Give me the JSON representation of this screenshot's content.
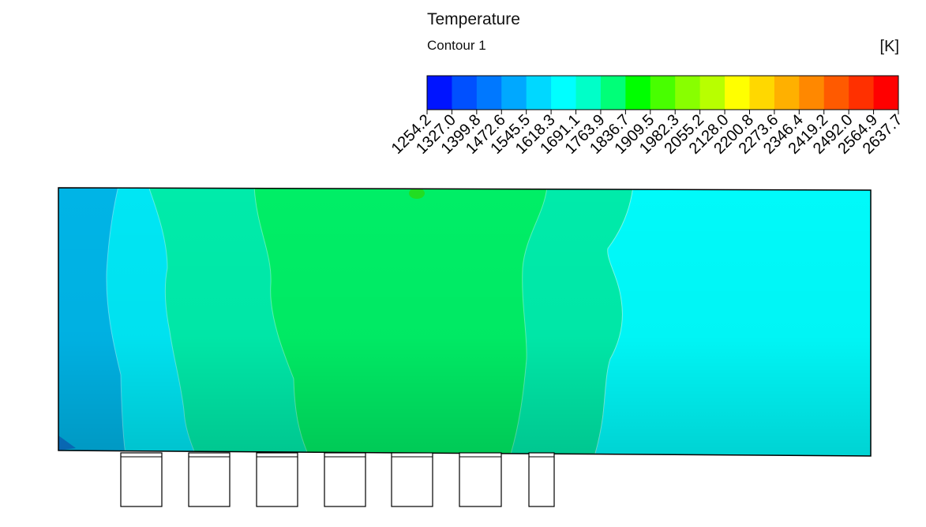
{
  "chart_data": {
    "type": "heatmap",
    "title": "Temperature",
    "subtitle": "Contour 1",
    "unit": "[K]",
    "colorbar": {
      "ticks": [
        "1254.2",
        "1327.0",
        "1399.8",
        "1472.6",
        "1545.5",
        "1618.3",
        "1691.1",
        "1763.9",
        "1836.7",
        "1909.5",
        "1982.3",
        "2055.2",
        "2128.0",
        "2200.8",
        "2273.6",
        "2346.4",
        "2419.2",
        "2492.0",
        "2564.9",
        "2637.7"
      ],
      "colors": [
        "#0014ff",
        "#0050ff",
        "#0078ff",
        "#00a8ff",
        "#00d8ff",
        "#00ffff",
        "#00ffc8",
        "#00ff78",
        "#00ff00",
        "#48ff00",
        "#88ff00",
        "#b8ff00",
        "#ffff00",
        "#ffd800",
        "#ffb000",
        "#ff8800",
        "#ff5a00",
        "#ff3000",
        "#ff0000"
      ]
    },
    "field_bands": [
      {
        "name": "left-edge-band",
        "color": "#00b4e6",
        "level": "1618.3"
      },
      {
        "name": "cold-band-left",
        "color": "#00e6f4",
        "level": "1691.1"
      },
      {
        "name": "warm-band-left",
        "color": "#00ebaa",
        "level": "1763.9"
      },
      {
        "name": "hot-core",
        "color": "#00ee66",
        "level": "1836.7"
      },
      {
        "name": "warm-band-right",
        "color": "#00f0b4",
        "level": "1763.9"
      },
      {
        "name": "cold-band-right",
        "color": "#00fafa",
        "level": "1691.1"
      }
    ],
    "inlet_count": 7
  }
}
